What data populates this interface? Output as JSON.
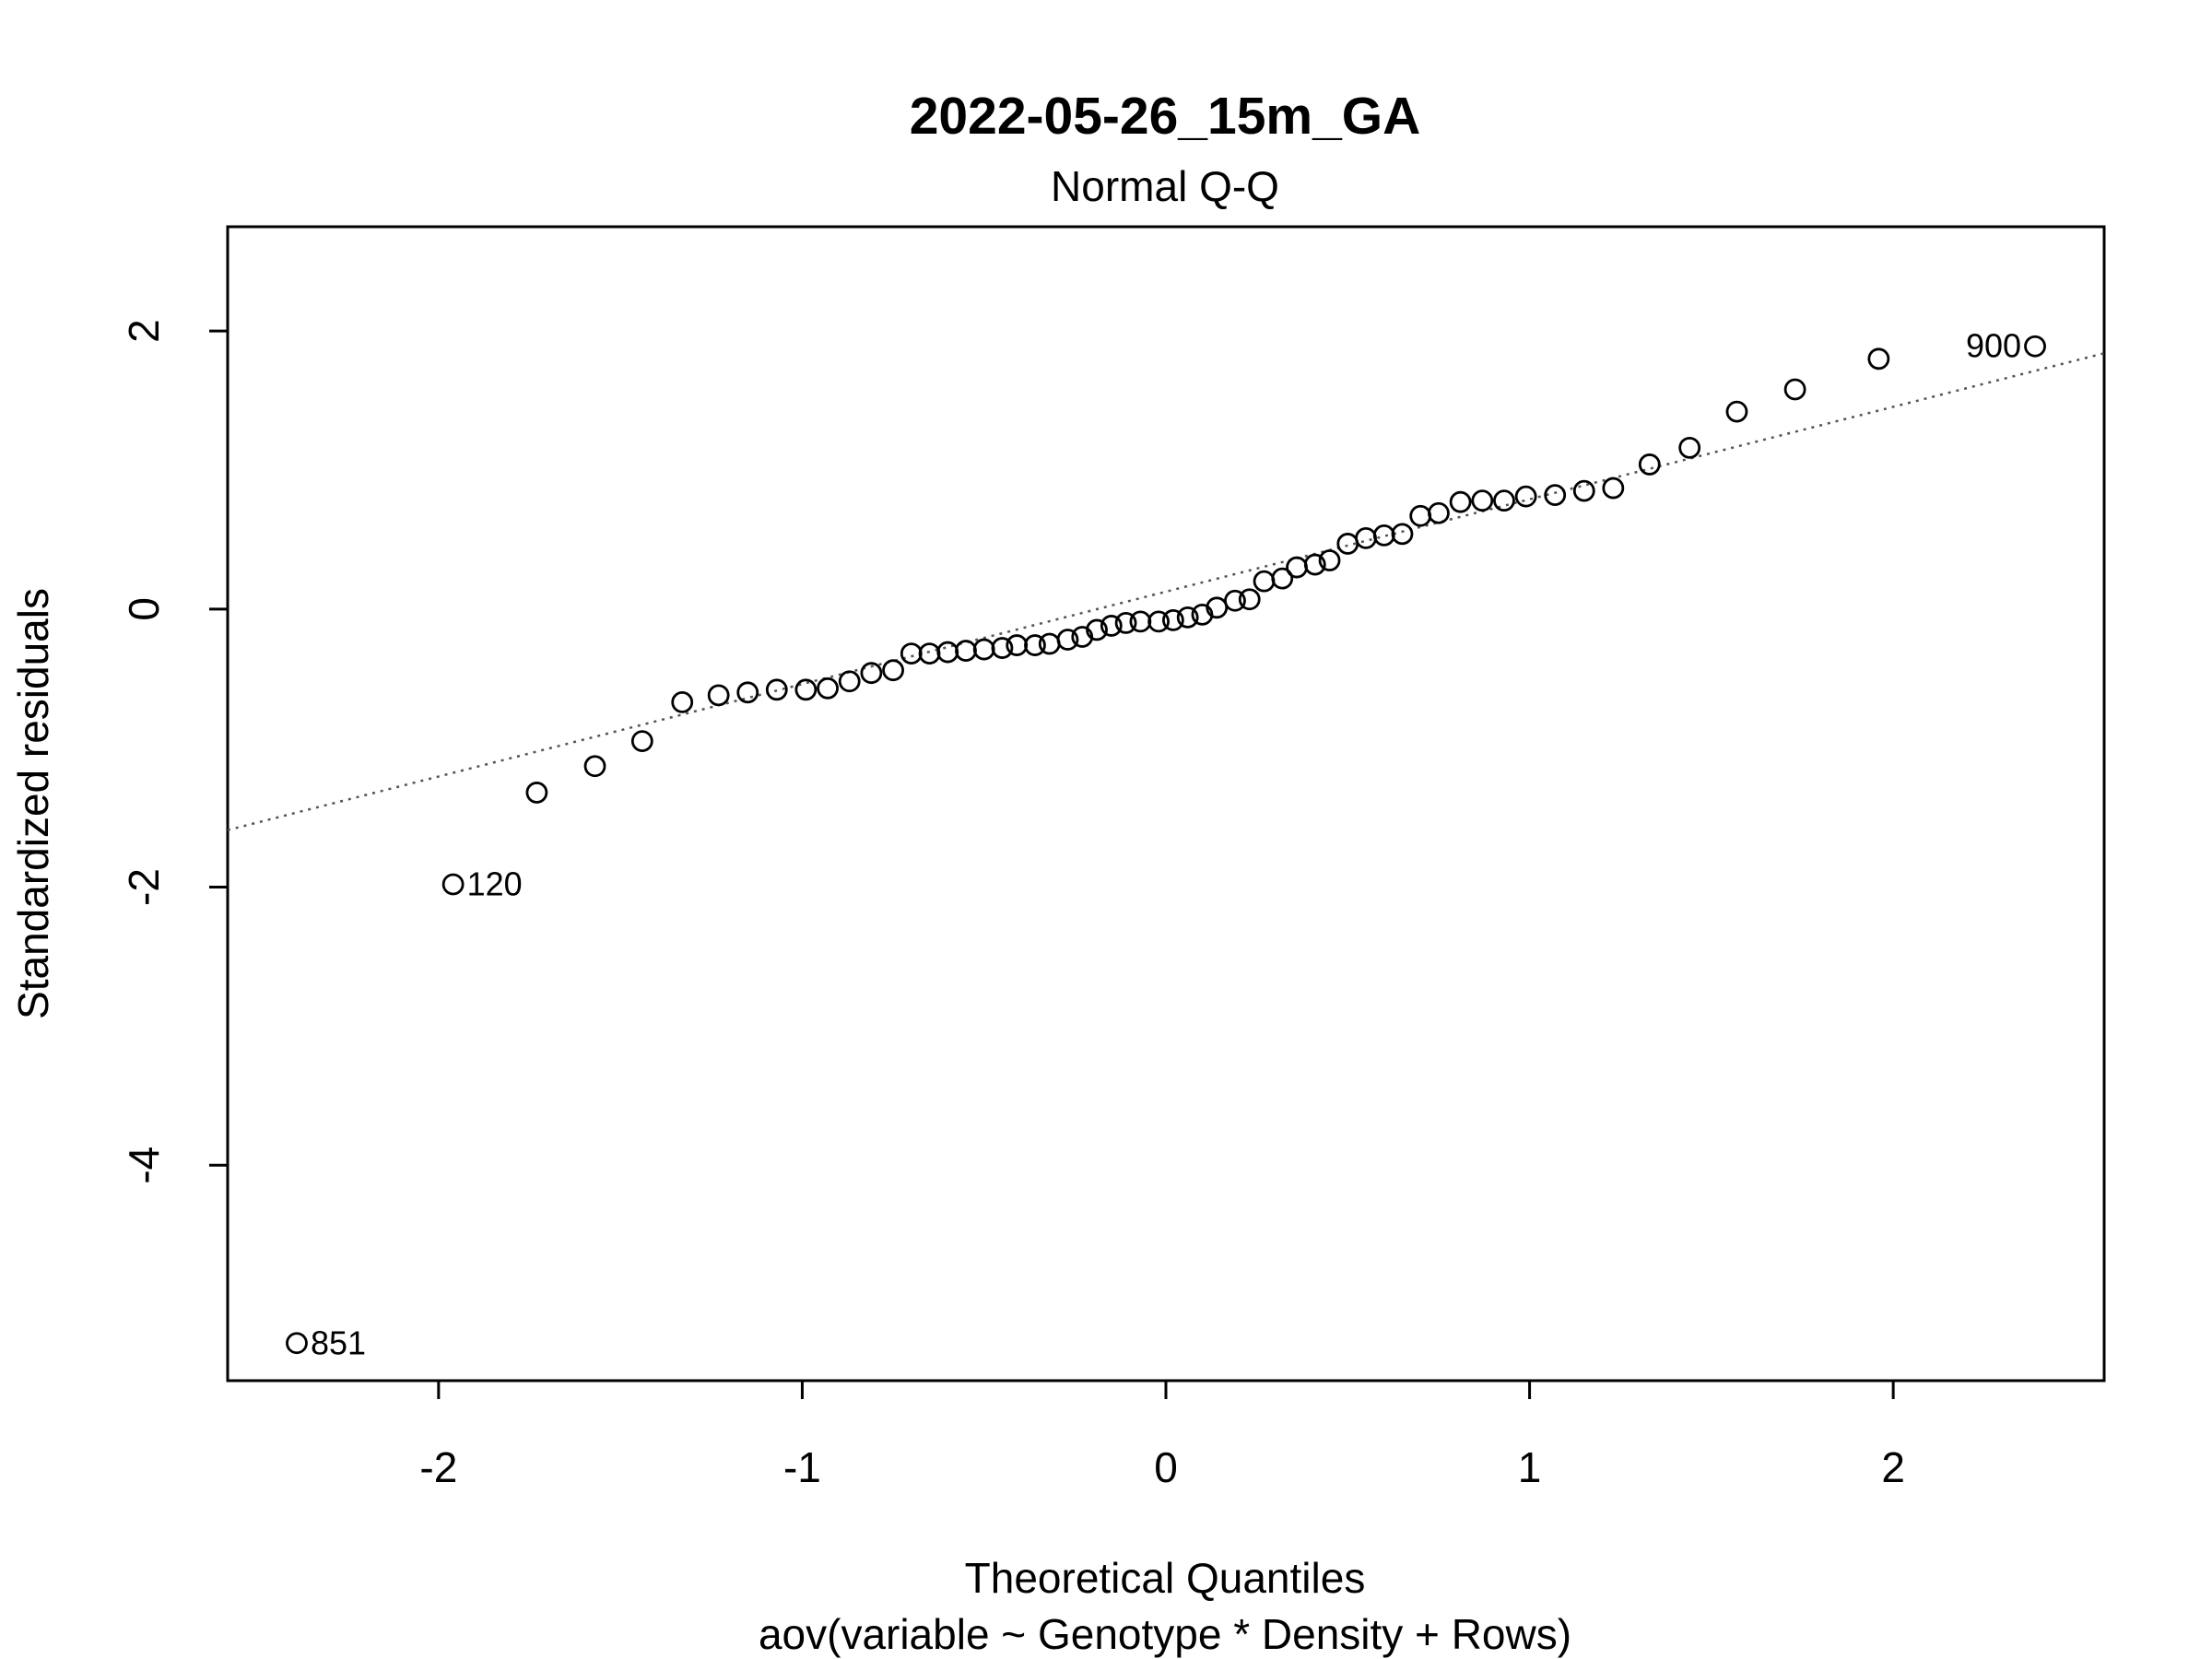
{
  "chart_data": {
    "type": "scatter",
    "title": "2022-05-26_15m_GA",
    "subtitle": "Normal Q-Q",
    "xlabel": "Theoretical Quantiles",
    "xlabel2": "aov(variable ~ Genotype * Density + Rows)",
    "ylabel": "Standardized residuals",
    "xlim": [
      -2.58,
      2.58
    ],
    "ylim": [
      -5.55,
      2.75
    ],
    "xticks": [
      -2,
      -1,
      0,
      1,
      2
    ],
    "yticks": [
      -4,
      -2,
      0,
      2
    ],
    "xtick_labels": [
      "-2",
      "-1",
      "0",
      "1",
      "2"
    ],
    "ytick_labels": [
      "-4",
      "-2",
      "0",
      "2"
    ],
    "reference_line": {
      "style": "dotted",
      "color": "#555555",
      "points": [
        [
          -2.58,
          -1.59
        ],
        [
          2.58,
          1.84
        ]
      ]
    },
    "points": [
      {
        "x": -2.39,
        "y": -5.28,
        "label": "851"
      },
      {
        "x": -1.96,
        "y": -1.98,
        "label": "120"
      },
      {
        "x": -1.73,
        "y": -1.32
      },
      {
        "x": -1.57,
        "y": -1.13
      },
      {
        "x": -1.44,
        "y": -0.95
      },
      {
        "x": -1.33,
        "y": -0.67
      },
      {
        "x": -1.23,
        "y": -0.62
      },
      {
        "x": -1.15,
        "y": -0.6
      },
      {
        "x": -1.07,
        "y": -0.58
      },
      {
        "x": -0.99,
        "y": -0.58
      },
      {
        "x": -0.93,
        "y": -0.57
      },
      {
        "x": -0.87,
        "y": -0.52
      },
      {
        "x": -0.81,
        "y": -0.46
      },
      {
        "x": -0.75,
        "y": -0.44
      },
      {
        "x": -0.7,
        "y": -0.32
      },
      {
        "x": -0.65,
        "y": -0.32
      },
      {
        "x": -0.6,
        "y": -0.31
      },
      {
        "x": -0.55,
        "y": -0.3
      },
      {
        "x": -0.5,
        "y": -0.29
      },
      {
        "x": -0.45,
        "y": -0.28
      },
      {
        "x": -0.41,
        "y": -0.26
      },
      {
        "x": -0.36,
        "y": -0.26
      },
      {
        "x": -0.32,
        "y": -0.25
      },
      {
        "x": -0.27,
        "y": -0.22
      },
      {
        "x": -0.23,
        "y": -0.2
      },
      {
        "x": -0.19,
        "y": -0.15
      },
      {
        "x": -0.15,
        "y": -0.12
      },
      {
        "x": -0.11,
        "y": -0.1
      },
      {
        "x": -0.07,
        "y": -0.09
      },
      {
        "x": -0.02,
        "y": -0.09
      },
      {
        "x": 0.02,
        "y": -0.08
      },
      {
        "x": 0.06,
        "y": -0.06
      },
      {
        "x": 0.1,
        "y": -0.04
      },
      {
        "x": 0.14,
        "y": 0.01
      },
      {
        "x": 0.19,
        "y": 0.06
      },
      {
        "x": 0.23,
        "y": 0.07
      },
      {
        "x": 0.27,
        "y": 0.2
      },
      {
        "x": 0.32,
        "y": 0.22
      },
      {
        "x": 0.36,
        "y": 0.3
      },
      {
        "x": 0.41,
        "y": 0.32
      },
      {
        "x": 0.45,
        "y": 0.35
      },
      {
        "x": 0.5,
        "y": 0.47
      },
      {
        "x": 0.55,
        "y": 0.51
      },
      {
        "x": 0.6,
        "y": 0.53
      },
      {
        "x": 0.65,
        "y": 0.54
      },
      {
        "x": 0.7,
        "y": 0.67
      },
      {
        "x": 0.75,
        "y": 0.69
      },
      {
        "x": 0.81,
        "y": 0.77
      },
      {
        "x": 0.87,
        "y": 0.78
      },
      {
        "x": 0.93,
        "y": 0.78
      },
      {
        "x": 0.99,
        "y": 0.81
      },
      {
        "x": 1.07,
        "y": 0.82
      },
      {
        "x": 1.15,
        "y": 0.85
      },
      {
        "x": 1.23,
        "y": 0.87
      },
      {
        "x": 1.33,
        "y": 1.04
      },
      {
        "x": 1.44,
        "y": 1.16
      },
      {
        "x": 1.57,
        "y": 1.42
      },
      {
        "x": 1.73,
        "y": 1.58
      },
      {
        "x": 1.96,
        "y": 1.8
      },
      {
        "x": 2.39,
        "y": 1.89,
        "label": "900"
      }
    ]
  }
}
